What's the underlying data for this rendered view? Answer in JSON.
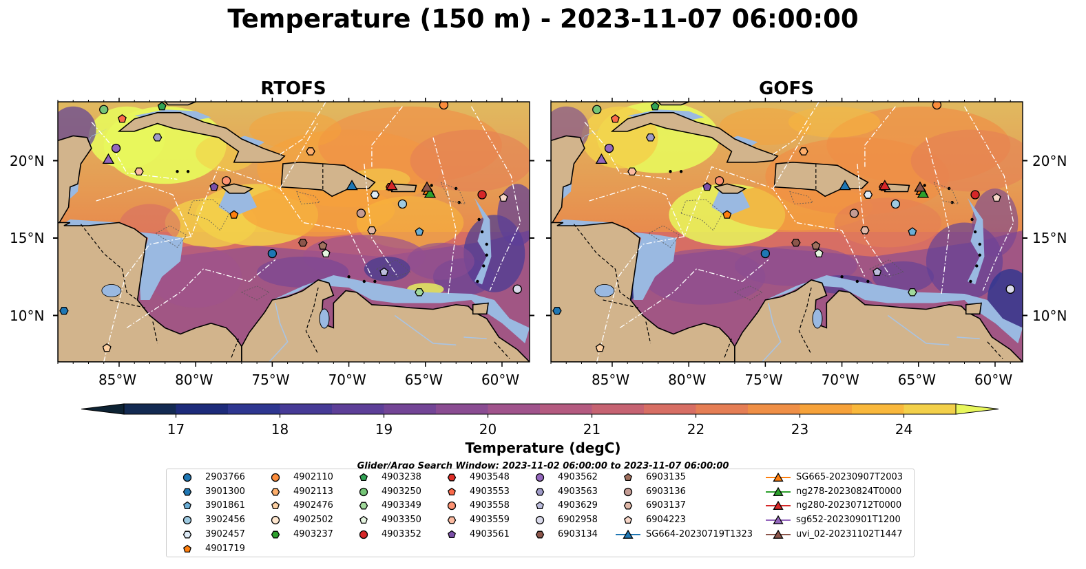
{
  "title": "Temperature (150 m) - 2023-11-07 06:00:00",
  "panels": [
    {
      "title": "RTOFS",
      "variant": "rtofs"
    },
    {
      "title": "GOFS",
      "variant": "gofs"
    }
  ],
  "axes": {
    "x_ticks": [
      "85°W",
      "80°W",
      "75°W",
      "70°W",
      "65°W",
      "60°W"
    ],
    "x_tick_values": [
      -85,
      -80,
      -75,
      -70,
      -65,
      -60
    ],
    "y_ticks": [
      "20°N",
      "15°N",
      "10°N"
    ],
    "y_tick_values": [
      20,
      15,
      10
    ],
    "lon_range": [
      -89,
      -58.2
    ],
    "lat_range": [
      7,
      23.8
    ]
  },
  "colorbar": {
    "label": "Temperature (degC)",
    "ticks": [
      "17",
      "18",
      "19",
      "20",
      "21",
      "22",
      "23",
      "24"
    ],
    "min": 16.5,
    "max": 24.5,
    "step": 0.5,
    "colors": [
      "#0d2233",
      "#132a52",
      "#1d2b7a",
      "#2e3690",
      "#463a96",
      "#5d3f98",
      "#734596",
      "#8a4c92",
      "#a0538c",
      "#b45a80",
      "#c66372",
      "#d76e64",
      "#e57e55",
      "#ef8f46",
      "#f6a23a",
      "#f9b83c",
      "#f3d04a",
      "#e8f75c"
    ]
  },
  "search_window": "Glider/Argo Search Window: 2023-11-02 06:00:00 to 2023-11-07 06:00:00",
  "colors": {
    "land": "#d2b48c",
    "shelf": "#9ab9e1",
    "coast": "#000000",
    "boundary": "#ffffff"
  },
  "legend": {
    "columns": [
      [
        {
          "id": "2903766",
          "marker": "circle",
          "color": "#1f77b4"
        },
        {
          "id": "3901300",
          "marker": "hexagon",
          "color": "#1f77b4"
        },
        {
          "id": "3901861",
          "marker": "pentagon",
          "color": "#6baed6"
        },
        {
          "id": "3902456",
          "marker": "circle",
          "color": "#9ecae1"
        },
        {
          "id": "3902457",
          "marker": "hexagon",
          "color": "#deebf7"
        },
        {
          "id": "4901719",
          "marker": "pentagon",
          "color": "#ff7f0e"
        }
      ],
      [
        {
          "id": "4902110",
          "marker": "circle",
          "color": "#fd8d3c"
        },
        {
          "id": "4902113",
          "marker": "hexagon",
          "color": "#fdae6b"
        },
        {
          "id": "4902476",
          "marker": "pentagon",
          "color": "#fdd0a2"
        },
        {
          "id": "4902502",
          "marker": "circle",
          "color": "#fee6ce"
        },
        {
          "id": "4903237",
          "marker": "hexagon",
          "color": "#2ca02c"
        }
      ],
      [
        {
          "id": "4903238",
          "marker": "pentagon",
          "color": "#31a354"
        },
        {
          "id": "4903250",
          "marker": "circle",
          "color": "#74c476"
        },
        {
          "id": "4903349",
          "marker": "hexagon",
          "color": "#a1d99b"
        },
        {
          "id": "4903350",
          "marker": "pentagon",
          "color": "#e5f5e0"
        },
        {
          "id": "4903352",
          "marker": "circle",
          "color": "#d62728"
        }
      ],
      [
        {
          "id": "4903548",
          "marker": "hexagon",
          "color": "#de2d26"
        },
        {
          "id": "4903553",
          "marker": "pentagon",
          "color": "#fb6a4a"
        },
        {
          "id": "4903558",
          "marker": "circle",
          "color": "#fc9272"
        },
        {
          "id": "4903559",
          "marker": "hexagon",
          "color": "#fcbba1"
        },
        {
          "id": "4903561",
          "marker": "pentagon",
          "color": "#7b4fa8"
        }
      ],
      [
        {
          "id": "4903562",
          "marker": "circle",
          "color": "#9467bd"
        },
        {
          "id": "4903563",
          "marker": "hexagon",
          "color": "#9e9ac8"
        },
        {
          "id": "4903629",
          "marker": "pentagon",
          "color": "#bcbddc"
        },
        {
          "id": "6902958",
          "marker": "circle",
          "color": "#dadaeb"
        },
        {
          "id": "6903134",
          "marker": "hexagon",
          "color": "#8c564b"
        }
      ],
      [
        {
          "id": "6903135",
          "marker": "pentagon",
          "color": "#a0705e"
        },
        {
          "id": "6903136",
          "marker": "circle",
          "color": "#c49c94"
        },
        {
          "id": "6903137",
          "marker": "hexagon",
          "color": "#e0b8a8"
        },
        {
          "id": "6904223",
          "marker": "pentagon",
          "color": "#f7d6c8"
        },
        {
          "id": "SG664-20230719T1323",
          "marker": "triangle",
          "color": "#1f77b4",
          "line": true
        }
      ],
      [
        {
          "id": "SG665-20230907T2003",
          "marker": "triangle",
          "color": "#ff7f0e",
          "line": true
        },
        {
          "id": "ng278-20230824T0000",
          "marker": "triangle",
          "color": "#2ca02c",
          "line": true
        },
        {
          "id": "ng280-20230712T0000",
          "marker": "triangle",
          "color": "#d62728",
          "line": true
        },
        {
          "id": "sg652-20230901T1200",
          "marker": "triangle",
          "color": "#9467bd",
          "line": true
        },
        {
          "id": "uvi_02-20231102T1447",
          "marker": "triangle",
          "color": "#8c564b",
          "line": true
        }
      ]
    ]
  },
  "observations": [
    {
      "id": "2903766",
      "lon": -75.0,
      "lat": 14.0
    },
    {
      "id": "3901300",
      "lon": -88.6,
      "lat": 10.3
    },
    {
      "id": "3901861",
      "lon": -65.4,
      "lat": 15.4
    },
    {
      "id": "3902456",
      "lon": -66.5,
      "lat": 17.2
    },
    {
      "id": "3902457",
      "lon": -68.3,
      "lat": 17.8
    },
    {
      "id": "4901719",
      "lon": -77.5,
      "lat": 16.5
    },
    {
      "id": "4902110",
      "lon": -63.8,
      "lat": 23.6
    },
    {
      "id": "4902113",
      "lon": -72.5,
      "lat": 20.6
    },
    {
      "id": "4902476",
      "lon": -85.8,
      "lat": 7.9
    },
    {
      "id": "4902502",
      "lon": -59.0,
      "lat": 11.7
    },
    {
      "id": "4903237",
      "lon": -64.8,
      "lat": 18.0
    },
    {
      "id": "4903238",
      "lon": -82.2,
      "lat": 23.5
    },
    {
      "id": "4903250",
      "lon": -86.0,
      "lat": 23.3
    },
    {
      "id": "4903349",
      "lon": -65.4,
      "lat": 11.5
    },
    {
      "id": "4903350",
      "lon": -71.5,
      "lat": 14.0
    },
    {
      "id": "4903352",
      "lon": -61.3,
      "lat": 17.8
    },
    {
      "id": "4903548",
      "lon": -67.3,
      "lat": 18.3
    },
    {
      "id": "4903553",
      "lon": -84.8,
      "lat": 22.7
    },
    {
      "id": "4903558",
      "lon": -78.0,
      "lat": 18.7
    },
    {
      "id": "4903559",
      "lon": -83.7,
      "lat": 19.3
    },
    {
      "id": "4903561",
      "lon": -78.8,
      "lat": 18.3
    },
    {
      "id": "4903562",
      "lon": -85.2,
      "lat": 20.8
    },
    {
      "id": "4903563",
      "lon": -82.5,
      "lat": 21.5
    },
    {
      "id": "4903629",
      "lon": -67.7,
      "lat": 12.8
    },
    {
      "id": "6902958",
      "lon": -59.0,
      "lat": 11.7
    },
    {
      "id": "6903134",
      "lon": -73.0,
      "lat": 14.7
    },
    {
      "id": "6903135",
      "lon": -71.7,
      "lat": 14.5
    },
    {
      "id": "6903136",
      "lon": -69.2,
      "lat": 16.6
    },
    {
      "id": "6903137",
      "lon": -68.5,
      "lat": 15.5
    },
    {
      "id": "6904223",
      "lon": -59.9,
      "lat": 17.6
    },
    {
      "id": "SG664-20230719T1323",
      "lon": -69.8,
      "lat": 18.4
    },
    {
      "id": "SG665-20230907T2003",
      "lon": -64.8,
      "lat": 18.1
    },
    {
      "id": "ng278-20230824T0000",
      "lon": -64.7,
      "lat": 17.9
    },
    {
      "id": "ng280-20230712T0000",
      "lon": -67.2,
      "lat": 18.4
    },
    {
      "id": "sg652-20230901T1200",
      "lon": -85.7,
      "lat": 20.1
    },
    {
      "id": "uvi_02-20231102T1447",
      "lon": -64.9,
      "lat": 18.3
    }
  ]
}
